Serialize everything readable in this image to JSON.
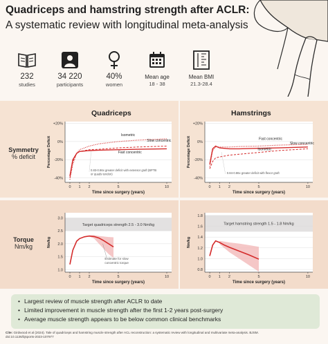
{
  "header": {
    "title": "Quadriceps and hamstring strength after ACLR:",
    "subtitle": "A systematic review with longitudinal meta-analysis"
  },
  "stats": [
    {
      "icon": "book-icon",
      "value": "232",
      "label": "studies"
    },
    {
      "icon": "person-icon",
      "value": "34 220",
      "label": "participants"
    },
    {
      "icon": "female-symbol-icon",
      "value": "40%",
      "label": "women"
    },
    {
      "icon": "calendar-icon",
      "value": "Mean age",
      "label": "18 - 38"
    },
    {
      "icon": "height-scale-icon",
      "value": "Mean BMI",
      "label": "21.3-28.4"
    }
  ],
  "columns": {
    "left": "Quadriceps",
    "right": "Hamstrings"
  },
  "rows": {
    "symmetry": {
      "title": "Symmetry",
      "unit": "% deficit"
    },
    "torque": {
      "title": "Torque",
      "unit": "Nm/kg"
    }
  },
  "footer": {
    "bullets": [
      "Largest review of muscle strength after ACLR to date",
      "Limited improvement in muscle strength after the first 1-2 years post-surgery",
      "Average muscle strength appears to be below common clinical benchmarks"
    ],
    "cite_label": "Cite:",
    "cite_text": "Girdwood et al (2024). Tale of quadriceps and hamstring muscle strength after ACL reconstruction: a systematic review with longitudinal and multivariate meta-analysis. BJSM. doi:10.1136/bjsports-2023-107977"
  },
  "colors": {
    "red": "#d42a2a",
    "band": "#f6e3d3",
    "green_box": "#dfe9d7"
  },
  "chart_data": [
    {
      "type": "line",
      "id": "quad-symmetry",
      "xlabel": "Time since surgery (years)",
      "ylabel": "Percentage Deficit",
      "xticks": [
        0,
        1,
        2,
        5,
        10
      ],
      "yticks": [
        "+20%",
        "0%",
        "-20%",
        "-40%"
      ],
      "xlim": [
        -0.5,
        10.5
      ],
      "ylim": [
        -45,
        22
      ],
      "series": [
        {
          "name": "Isometric",
          "style": "dotted",
          "x": [
            0,
            0.3,
            0.7,
            1,
            2,
            3,
            5,
            7,
            10
          ],
          "y": [
            -42,
            -25,
            -13,
            -9,
            -5,
            -2.5,
            0,
            1.5,
            3
          ]
        },
        {
          "name": "Slow concentric",
          "style": "dashed",
          "x": [
            0,
            0.3,
            0.7,
            1,
            2,
            3,
            5,
            7,
            10
          ],
          "y": [
            -40,
            -22,
            -13,
            -11,
            -9,
            -8.5,
            -7,
            -6,
            -5
          ]
        },
        {
          "name": "Fast concentric",
          "style": "solid",
          "x": [
            0,
            0.3,
            0.7,
            1,
            2,
            3,
            5,
            7,
            10
          ],
          "y": [
            -38,
            -20,
            -13,
            -11,
            -10,
            -9.5,
            -9,
            -8.5,
            -8
          ]
        }
      ],
      "annotations": [
        "Isometric",
        "Slow concentric",
        "Fast concentric",
        "0.83-0.86x greater deficit with extensor graft (BPTB or quads tendon)"
      ]
    },
    {
      "type": "line",
      "id": "ham-symmetry",
      "xlabel": "Time since surgery (years)",
      "ylabel": "Percentage Deficit",
      "xticks": [
        0,
        1,
        2,
        5,
        10
      ],
      "yticks": [
        "+20%",
        "0%",
        "-20%",
        "-40%"
      ],
      "xlim": [
        -0.5,
        10.5
      ],
      "ylim": [
        -45,
        22
      ],
      "series": [
        {
          "name": "Fast concentric",
          "style": "dotted",
          "x": [
            0,
            0.3,
            0.6,
            1,
            2,
            3,
            5,
            7,
            10
          ],
          "y": [
            -28,
            -10,
            -6,
            -6,
            -6,
            -5.5,
            -5,
            -4,
            -3
          ]
        },
        {
          "name": "Slow concentric",
          "style": "solid",
          "x": [
            0,
            0.3,
            0.6,
            1,
            2,
            3,
            5,
            7,
            10
          ],
          "y": [
            -25,
            -8,
            -5,
            -7,
            -8,
            -8,
            -7.5,
            -7,
            -6
          ]
        },
        {
          "name": "Isometric",
          "style": "dashed",
          "x": [
            0,
            0.3,
            0.6,
            1,
            2,
            3,
            5,
            7,
            10
          ],
          "y": [
            -30,
            -22,
            -18,
            -17,
            -15,
            -14,
            -12,
            -10,
            -8
          ]
        }
      ],
      "annotations": [
        "Fast concentric",
        "Slow concentric",
        "Isometric",
        "0.84-0.86x greater deficit with flexor graft"
      ]
    },
    {
      "type": "line",
      "id": "quad-torque",
      "xlabel": "Time since surgery (years)",
      "ylabel": "Nm/kg",
      "xticks": [
        0,
        1,
        2,
        5,
        10
      ],
      "yticks": [
        1.0,
        1.5,
        2.0,
        2.5,
        3.0
      ],
      "xlim": [
        -0.5,
        10.5
      ],
      "ylim": [
        0.9,
        3.2
      ],
      "target_band": [
        2.5,
        3.0
      ],
      "target_label": "Target quadriceps strength 2.5 - 3.0 Nm/kg",
      "series": [
        {
          "name": "Estimate",
          "x": [
            0,
            0.3,
            0.7,
            1,
            1.5,
            2,
            2.5,
            3,
            3.5,
            4,
            4.5
          ],
          "y": [
            1.2,
            1.75,
            2.1,
            2.2,
            2.27,
            2.3,
            2.28,
            2.22,
            2.12,
            2.0,
            1.88
          ]
        },
        {
          "name": "Upper CI",
          "x": [
            2,
            2.5,
            3,
            3.5,
            4,
            4.5
          ],
          "y": [
            2.32,
            2.33,
            2.3,
            2.28,
            2.26,
            2.25
          ]
        },
        {
          "name": "Lower CI",
          "x": [
            2,
            2.5,
            3,
            3.5,
            4,
            4.5
          ],
          "y": [
            2.28,
            2.2,
            2.0,
            1.8,
            1.6,
            1.45
          ]
        }
      ],
      "annotations": [
        "Estimate for slow concentric torque"
      ]
    },
    {
      "type": "line",
      "id": "ham-torque",
      "xlabel": "Time since surgery (years)",
      "ylabel": "Nm/kg",
      "xticks": [
        0,
        1,
        2,
        5,
        10
      ],
      "yticks": [
        0.8,
        1.0,
        1.2,
        1.4,
        1.6,
        1.8
      ],
      "xlim": [
        -0.5,
        10.5
      ],
      "ylim": [
        0.75,
        1.85
      ],
      "target_band": [
        1.5,
        1.8
      ],
      "target_label": "Target hamstring strength 1.5 - 1.8 Nm/kg",
      "series": [
        {
          "name": "Estimate",
          "x": [
            0,
            0.3,
            0.6,
            1,
            1.5,
            2,
            3,
            4,
            5
          ],
          "y": [
            1.05,
            1.25,
            1.33,
            1.3,
            1.25,
            1.21,
            1.14,
            1.07,
            0.99
          ]
        },
        {
          "name": "Upper CI",
          "x": [
            1,
            2,
            3,
            4,
            5
          ],
          "y": [
            1.33,
            1.3,
            1.28,
            1.25,
            1.22
          ]
        },
        {
          "name": "Lower CI",
          "x": [
            1,
            2,
            3,
            4,
            5
          ],
          "y": [
            1.27,
            1.12,
            1.0,
            0.88,
            0.76
          ]
        }
      ],
      "annotations": []
    }
  ]
}
